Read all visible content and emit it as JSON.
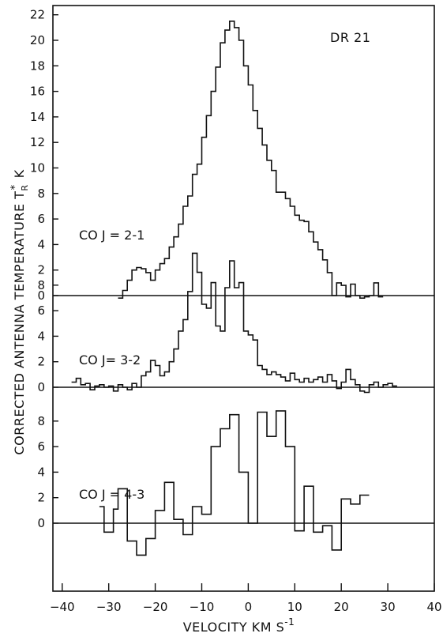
{
  "chart_data": {
    "type": "line",
    "title": "DR 21",
    "xlabel": "VELOCITY KM S",
    "xlabel_sup": "-1",
    "ylabel": "CORRECTED ANTENNA TEMPERATURE",
    "ylabel_symbol": "T",
    "ylabel_sup": "*",
    "ylabel_sub": "R",
    "ylabel_unit": "K",
    "xlim": [
      -42,
      40
    ],
    "x_ticks": [
      -40,
      -30,
      -20,
      -10,
      0,
      10,
      20,
      30,
      40
    ],
    "grid": false,
    "panels": [
      {
        "name": "CO J = 2-1",
        "y_ticks": [
          0,
          2,
          4,
          6,
          8,
          10,
          12,
          14,
          16,
          18,
          20,
          22
        ],
        "bin_edges": [
          -28,
          -27,
          -26,
          -25,
          -24,
          -23,
          -22,
          -21,
          -20,
          -19,
          -18,
          -17,
          -16,
          -15,
          -14,
          -13,
          -12,
          -11,
          -10,
          -9,
          -8,
          -7,
          -6,
          -5,
          -4,
          -3,
          -2,
          -1,
          0,
          1,
          2,
          3,
          4,
          5,
          6,
          7,
          8,
          9,
          10,
          11,
          12,
          13,
          14,
          15,
          16,
          17,
          18,
          19,
          20,
          21,
          22,
          23,
          24,
          25,
          26,
          27,
          28,
          29
        ],
        "values": [
          -0.2,
          0.4,
          1.2,
          2.0,
          2.2,
          2.1,
          1.8,
          1.2,
          2.0,
          2.5,
          2.9,
          3.8,
          4.6,
          5.6,
          7.0,
          7.8,
          9.5,
          10.3,
          12.4,
          14.1,
          16.0,
          17.9,
          19.8,
          20.8,
          21.5,
          21.0,
          20.0,
          18.0,
          16.5,
          14.5,
          13.1,
          11.8,
          10.6,
          9.8,
          8.1,
          8.1,
          7.6,
          7.0,
          6.3,
          5.9,
          5.8,
          5.0,
          4.2,
          3.6,
          2.8,
          1.8,
          0.0,
          1.0,
          0.8,
          -0.1,
          0.9,
          0.0,
          -0.2,
          -0.1,
          0.0,
          1.0,
          -0.1
        ]
      },
      {
        "name": "CO J= 3-2",
        "y_ticks": [
          0,
          2,
          4,
          6,
          8
        ],
        "bin_edges": [
          -38,
          -37,
          -36,
          -35,
          -34,
          -33,
          -32,
          -31,
          -30,
          -29,
          -28,
          -27,
          -26,
          -25,
          -24,
          -23,
          -22,
          -21,
          -20,
          -19,
          -18,
          -17,
          -16,
          -15,
          -14,
          -13,
          -12,
          -11,
          -10,
          -9,
          -8,
          -7,
          -6,
          -5,
          -4,
          -3,
          -2,
          -1,
          0,
          1,
          2,
          3,
          4,
          5,
          6,
          7,
          8,
          9,
          10,
          11,
          12,
          13,
          14,
          15,
          16,
          17,
          18,
          19,
          20,
          21,
          22,
          23,
          24,
          25,
          26,
          27,
          28,
          29,
          30,
          31,
          32
        ],
        "values": [
          0.4,
          0.7,
          0.2,
          0.3,
          -0.2,
          0.1,
          0.2,
          0.0,
          0.1,
          -0.3,
          0.2,
          0.0,
          -0.2,
          0.3,
          0.0,
          0.9,
          1.2,
          2.1,
          1.7,
          0.9,
          1.2,
          2.0,
          3.0,
          4.4,
          5.3,
          7.5,
          10.5,
          9.0,
          6.5,
          6.2,
          8.2,
          4.8,
          4.4,
          7.8,
          9.9,
          7.8,
          8.2,
          4.4,
          4.1,
          3.7,
          1.7,
          1.4,
          1.0,
          1.2,
          1.0,
          0.8,
          0.5,
          1.1,
          0.6,
          0.4,
          0.7,
          0.4,
          0.6,
          0.8,
          0.4,
          1.0,
          0.5,
          -0.1,
          0.4,
          1.4,
          0.6,
          0.2,
          -0.3,
          -0.4,
          0.2,
          0.4,
          0.0,
          0.2,
          0.3,
          0.1
        ]
      },
      {
        "name": "CO J = 4-3",
        "y_ticks": [
          0,
          2,
          4,
          6,
          8
        ],
        "bin_edges": [
          -32,
          -31,
          -29,
          -28,
          -26,
          -24,
          -22,
          -20,
          -18,
          -16,
          -14,
          -12,
          -10,
          -8,
          -6,
          -4,
          -2,
          0,
          2,
          4,
          6,
          8,
          10,
          12,
          14,
          16,
          18,
          20,
          22,
          24,
          26
        ],
        "values": [
          1.3,
          -0.7,
          1.1,
          2.7,
          -1.4,
          -2.5,
          -1.2,
          1.0,
          3.2,
          0.3,
          -0.9,
          1.3,
          0.7,
          6.0,
          7.4,
          8.5,
          4.0,
          0.0,
          8.7,
          6.8,
          8.8,
          6.0,
          -0.6,
          2.9,
          -0.7,
          -0.2,
          -2.1,
          1.9,
          1.5,
          2.2
        ]
      }
    ]
  }
}
